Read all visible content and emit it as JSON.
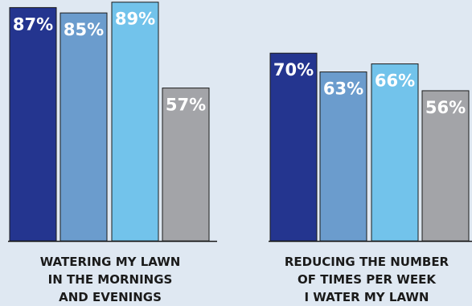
{
  "chart_data": [
    {
      "type": "bar",
      "group_label_lines": [
        "WATERING MY LAWN",
        "IN THE MORNINGS",
        "AND EVENINGS"
      ],
      "values": [
        87,
        85,
        89,
        57
      ],
      "value_labels": [
        "87%",
        "85%",
        "89%",
        "57%"
      ],
      "colors": [
        "#24358f",
        "#6b9ccd",
        "#72c3eb",
        "#a3a4a8"
      ],
      "ylim": [
        0,
        100
      ],
      "grid": false,
      "legend": "none"
    },
    {
      "type": "bar",
      "group_label_lines": [
        "REDUCING THE NUMBER",
        "OF TIMES PER WEEK",
        "I WATER MY LAWN"
      ],
      "values": [
        70,
        63,
        66,
        56
      ],
      "value_labels": [
        "70%",
        "63%",
        "66%",
        "56%"
      ],
      "colors": [
        "#24358f",
        "#6b9ccd",
        "#72c3eb",
        "#a3a4a8"
      ],
      "ylim": [
        0,
        100
      ],
      "grid": false,
      "legend": "none"
    }
  ]
}
